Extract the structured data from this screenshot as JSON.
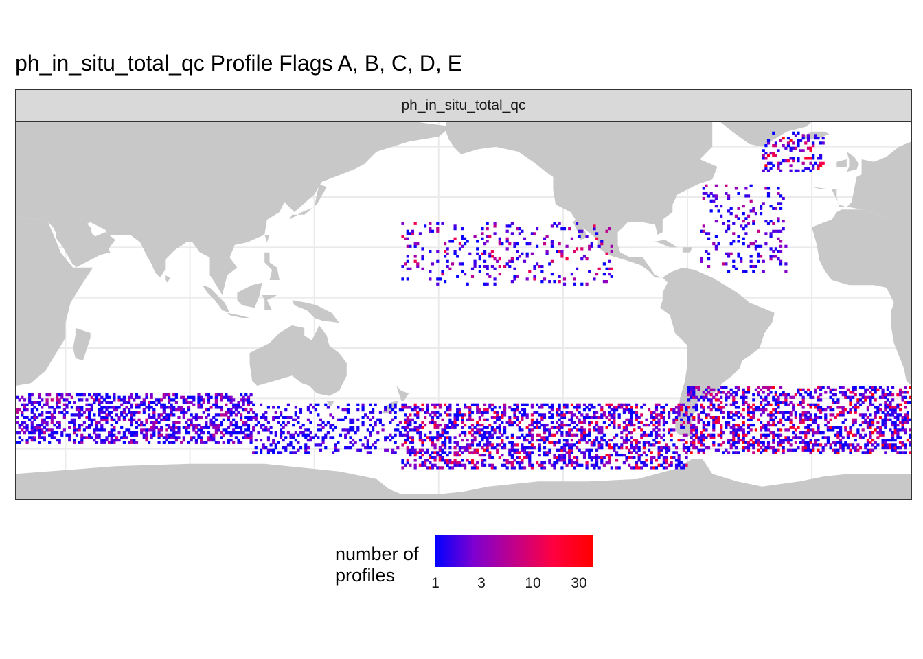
{
  "title": "ph_in_situ_total_qc Profile Flags A, B, C, D, E",
  "facet_label": "ph_in_situ_total_qc",
  "legend": {
    "title_line1": "number of",
    "title_line2": "profiles",
    "ticks": [
      "1",
      "3",
      "10",
      "30"
    ],
    "colors": [
      "#0000ff",
      "#ff0000"
    ],
    "scale": "log"
  },
  "colors": {
    "land": "#c8c8c8",
    "ocean": "#ffffff",
    "strip": "#d9d9d9",
    "grid": "#ebebeb"
  },
  "map": {
    "projection": "longitude/latitude, Pacific-centred",
    "lon_range": [
      20,
      380
    ],
    "lat_range": [
      -80,
      70
    ],
    "grid_lon": [
      40,
      90,
      140,
      190,
      240,
      290,
      340
    ],
    "grid_lat": [
      -60,
      -40,
      -20,
      0,
      20,
      40,
      60
    ]
  },
  "chart_data": {
    "type": "heatmap",
    "title": "ph_in_situ_total_qc Profile Flags A, B, C, D, E",
    "facet": "ph_in_situ_total_qc",
    "fill_label": "number of profiles",
    "fill_range": [
      1,
      40
    ],
    "fill_scale": "log10",
    "regions": [
      {
        "lon_range": [
          20,
          115
        ],
        "lat_range": [
          -58,
          -38
        ],
        "density": "high",
        "count_range": [
          1,
          10
        ]
      },
      {
        "lon_range": [
          115,
          175
        ],
        "lat_range": [
          -62,
          -42
        ],
        "density": "medium",
        "count_range": [
          1,
          5
        ]
      },
      {
        "lon_range": [
          175,
          290
        ],
        "lat_range": [
          -68,
          -42
        ],
        "density": "high",
        "count_range": [
          1,
          30
        ]
      },
      {
        "lon_range": [
          290,
          380
        ],
        "lat_range": [
          -62,
          -35
        ],
        "density": "high",
        "count_range": [
          1,
          40
        ]
      },
      {
        "lon_range": [
          175,
          260
        ],
        "lat_range": [
          5,
          30
        ],
        "density": "low",
        "count_range": [
          1,
          20
        ]
      },
      {
        "lon_range": [
          320,
          345
        ],
        "lat_range": [
          50,
          66
        ],
        "density": "medium",
        "count_range": [
          1,
          40
        ]
      },
      {
        "lon_range": [
          295,
          330
        ],
        "lat_range": [
          10,
          45
        ],
        "density": "low",
        "count_range": [
          1,
          10
        ]
      }
    ]
  }
}
